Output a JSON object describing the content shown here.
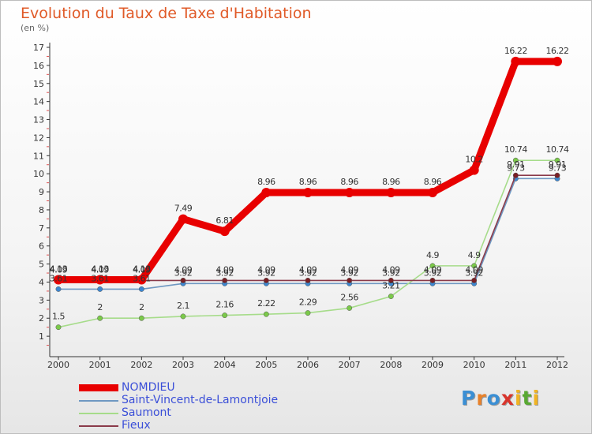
{
  "title": "Evolution du Taux de Taxe d'Habitation",
  "subtitle": "(en %)",
  "logo": {
    "text": "Proxiti",
    "letter_colors": [
      "#3b8fd4",
      "#e8812a",
      "#3b8fd4",
      "#d8342b",
      "#f0b323",
      "#58a832",
      "#f0b323"
    ]
  },
  "chart_data": {
    "type": "line",
    "x": [
      "2000",
      "2001",
      "2002",
      "2003",
      "2004",
      "2005",
      "2006",
      "2007",
      "2008",
      "2009",
      "2010",
      "2011",
      "2012"
    ],
    "ylim": [
      0,
      17
    ],
    "yticks": [
      1,
      2,
      3,
      4,
      5,
      6,
      7,
      8,
      9,
      10,
      11,
      12,
      13,
      14,
      15,
      16,
      17
    ],
    "grid": false,
    "legend_position": "bottom-left",
    "series": [
      {
        "name": "NOMDIEU",
        "color": "#e80000",
        "stroke": "heavy",
        "values": [
          4.13,
          4.13,
          4.13,
          7.49,
          6.81,
          8.96,
          8.96,
          8.96,
          8.96,
          8.96,
          10.2,
          16.22,
          16.22
        ],
        "labels": [
          "4.13",
          "4.13",
          "4.13",
          "7.49",
          "6.81",
          "8.96",
          "8.96",
          "8.96",
          "8.96",
          "8.96",
          "10.2",
          "16.22",
          "16.22"
        ]
      },
      {
        "name": "Saint-Vincent-de-Lamontjoie",
        "color": "#6f98c2",
        "marker": "#3d87d0",
        "stroke": "thin",
        "values": [
          3.61,
          3.61,
          3.61,
          3.92,
          3.92,
          3.92,
          3.92,
          3.92,
          3.92,
          3.92,
          3.92,
          9.73,
          9.73
        ],
        "labels": [
          "3.61",
          "3.61",
          "3.61",
          "3.92",
          "3.92",
          "3.92",
          "3.92",
          "3.92",
          "3.92",
          "3.92",
          "3.92",
          "9.73",
          "9.73"
        ]
      },
      {
        "name": "Saumont",
        "color": "#a6dc8a",
        "marker": "#7bc94a",
        "stroke": "thin",
        "values": [
          1.5,
          2,
          2,
          2.1,
          2.16,
          2.22,
          2.29,
          2.56,
          3.21,
          4.9,
          4.9,
          10.74,
          10.74
        ],
        "labels": [
          "1.5",
          "2",
          "2",
          "2.1",
          "2.16",
          "2.22",
          "2.29",
          "2.56",
          "3.21",
          "4.9",
          "4.9",
          "10.74",
          "10.74"
        ]
      },
      {
        "name": "Fieux",
        "color": "#8a3a4a",
        "marker": "#7a1f24",
        "stroke": "thin",
        "values": [
          4.09,
          4.09,
          4.09,
          4.09,
          4.09,
          4.09,
          4.09,
          4.09,
          4.09,
          4.09,
          4.09,
          9.91,
          9.91
        ],
        "labels": [
          "4.09",
          "4.09",
          "4.09",
          "4.09",
          "4.09",
          "4.09",
          "4.09",
          "4.09",
          "4.09",
          "4.09",
          "4.09",
          "9.91",
          "9.91"
        ]
      }
    ]
  }
}
